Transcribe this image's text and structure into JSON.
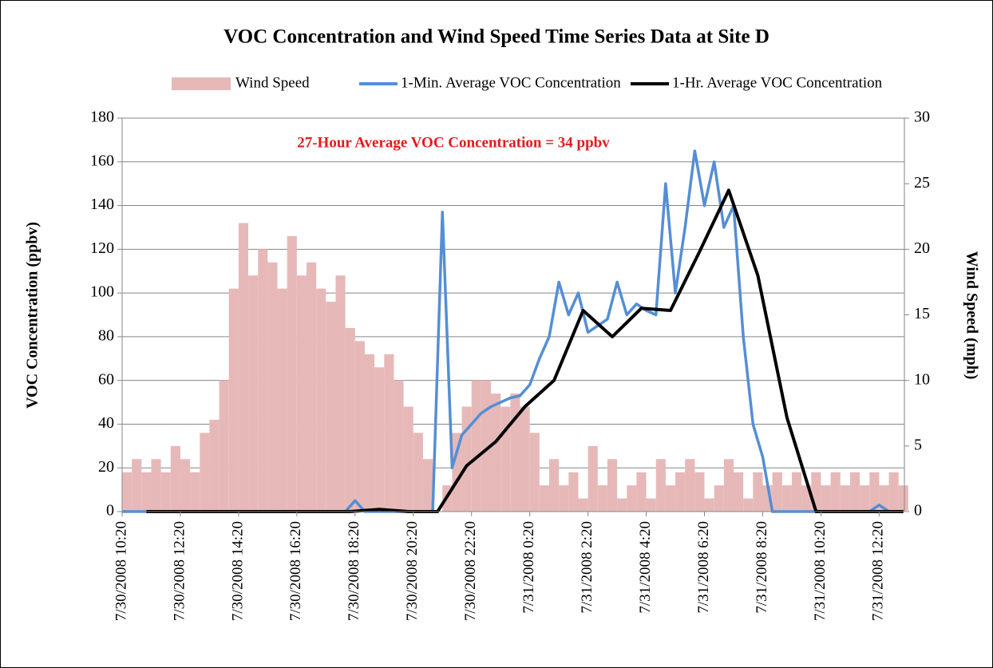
{
  "chart_data": {
    "type": "bar-line",
    "title": "VOC Concentration and Wind Speed Time Series Data at Site D",
    "annotation": "27-Hour Average VOC Concentration = 34 ppbv",
    "ylabel": "VOC Concentration (ppbv)",
    "y2label": "Wind Speed (mph)",
    "xlim": [
      0,
      1612
    ],
    "xticks": [
      {
        "value": 0,
        "label": "7/30/2008 10:20"
      },
      {
        "value": 120,
        "label": "7/30/2008 12:20"
      },
      {
        "value": 240,
        "label": "7/30/2008 14:20"
      },
      {
        "value": 360,
        "label": "7/30/2008 16:20"
      },
      {
        "value": 480,
        "label": "7/30/2008 18:20"
      },
      {
        "value": 600,
        "label": "7/30/2008 20:20"
      },
      {
        "value": 720,
        "label": "7/30/2008 22:20"
      },
      {
        "value": 840,
        "label": "7/31/2008 0:20"
      },
      {
        "value": 960,
        "label": "7/31/2008 2:20"
      },
      {
        "value": 1080,
        "label": "7/31/2008 4:20"
      },
      {
        "value": 1200,
        "label": "7/31/2008 6:20"
      },
      {
        "value": 1320,
        "label": "7/31/2008 8:20"
      },
      {
        "value": 1440,
        "label": "7/31/2008 10:20"
      },
      {
        "value": 1560,
        "label": "7/31/2008 12:20"
      }
    ],
    "ylim": [
      0,
      180
    ],
    "yticks": [
      0,
      20,
      40,
      60,
      80,
      100,
      120,
      140,
      160,
      180
    ],
    "y2lim": [
      0,
      30
    ],
    "y2ticks": [
      0,
      5,
      10,
      15,
      20,
      25,
      30
    ],
    "series": [
      {
        "name": "Wind Speed",
        "color": "#e6b9b8",
        "kind": "bar",
        "axis": "y2",
        "x": [
          0,
          20,
          40,
          60,
          80,
          100,
          120,
          140,
          160,
          180,
          200,
          220,
          240,
          260,
          280,
          300,
          320,
          340,
          360,
          380,
          400,
          420,
          440,
          460,
          480,
          500,
          520,
          540,
          560,
          580,
          600,
          620,
          640,
          660,
          680,
          700,
          720,
          740,
          760,
          780,
          800,
          820,
          840,
          860,
          880,
          900,
          920,
          940,
          960,
          980,
          1000,
          1020,
          1040,
          1060,
          1080,
          1100,
          1120,
          1140,
          1160,
          1180,
          1200,
          1220,
          1240,
          1260,
          1280,
          1300,
          1320,
          1340,
          1360,
          1380,
          1400,
          1420,
          1440,
          1460,
          1480,
          1500,
          1520,
          1540,
          1560,
          1580,
          1600
        ],
        "values": [
          3,
          4,
          3,
          4,
          3,
          5,
          4,
          3,
          6,
          7,
          10,
          17,
          22,
          18,
          20,
          19,
          17,
          21,
          18,
          19,
          17,
          16,
          18,
          14,
          13,
          12,
          11,
          12,
          10,
          8,
          6,
          4,
          0,
          2,
          6,
          8,
          10,
          10,
          9,
          8,
          9,
          8,
          6,
          2,
          4,
          2,
          3,
          1,
          5,
          2,
          4,
          1,
          2,
          3,
          1,
          4,
          2,
          3,
          4,
          3,
          1,
          2,
          4,
          3,
          1,
          3,
          2,
          3,
          2,
          3,
          2,
          3,
          2,
          3,
          2,
          3,
          2,
          3,
          2,
          3,
          2
        ]
      },
      {
        "name": "1-Min. Average VOC Concentration",
        "color": "#558ed5",
        "kind": "line",
        "axis": "y",
        "x": [
          0,
          20,
          40,
          60,
          80,
          100,
          120,
          140,
          160,
          180,
          200,
          220,
          240,
          260,
          280,
          300,
          320,
          340,
          360,
          380,
          400,
          420,
          440,
          460,
          480,
          500,
          520,
          540,
          560,
          580,
          600,
          620,
          640,
          660,
          680,
          700,
          720,
          740,
          760,
          780,
          800,
          820,
          840,
          860,
          880,
          900,
          920,
          940,
          960,
          980,
          1000,
          1020,
          1040,
          1060,
          1080,
          1100,
          1120,
          1140,
          1160,
          1180,
          1200,
          1220,
          1240,
          1260,
          1280,
          1300,
          1320,
          1340,
          1360,
          1380,
          1400,
          1420,
          1440,
          1460,
          1480,
          1500,
          1520,
          1540,
          1560,
          1580,
          1600
        ],
        "values": [
          0,
          0,
          0,
          0,
          0,
          0,
          0,
          0,
          0,
          0,
          0,
          0,
          0,
          0,
          0,
          0,
          0,
          0,
          0,
          0,
          0,
          0,
          0,
          0,
          5,
          0,
          0,
          0,
          0,
          0,
          0,
          0,
          0,
          137,
          20,
          35,
          40,
          45,
          48,
          50,
          52,
          53,
          58,
          70,
          80,
          105,
          90,
          100,
          82,
          85,
          88,
          105,
          90,
          95,
          92,
          90,
          150,
          100,
          130,
          165,
          140,
          160,
          130,
          140,
          80,
          40,
          25,
          0,
          0,
          0,
          0,
          0,
          0,
          0,
          0,
          0,
          0,
          0,
          3,
          0,
          0
        ]
      },
      {
        "name": "1-Hr. Average VOC Concentration",
        "color": "#000000",
        "kind": "line",
        "axis": "y",
        "x": [
          50,
          110,
          170,
          230,
          290,
          350,
          410,
          470,
          530,
          590,
          650,
          710,
          770,
          830,
          890,
          950,
          1010,
          1070,
          1130,
          1190,
          1250,
          1310,
          1370,
          1430,
          1490,
          1550,
          1610
        ],
        "values": [
          0,
          0,
          0,
          0,
          0,
          0,
          0,
          0,
          1,
          0,
          0,
          21,
          32,
          48,
          60,
          92,
          80,
          93,
          92,
          119,
          147,
          108,
          43,
          0,
          0,
          0,
          0
        ]
      }
    ]
  }
}
